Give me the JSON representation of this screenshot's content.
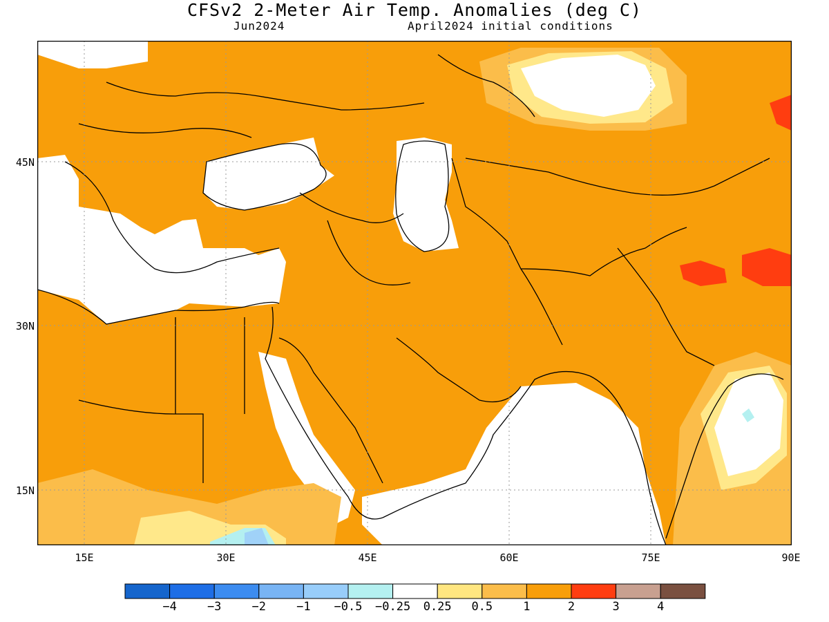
{
  "header": {
    "title": "CFSv2 2-Meter Air Temp. Anomalies (deg C)",
    "valid_month": "Jun2024",
    "init": "April2024 initial conditions"
  },
  "map": {
    "lon_range": [
      10,
      90
    ],
    "lat_range": [
      10,
      55
    ],
    "lat_labels": [
      "45N",
      "30N",
      "15N"
    ],
    "lon_labels": [
      "15E",
      "30E",
      "45E",
      "60E",
      "75E",
      "90E"
    ],
    "grid": "dotted",
    "colors": {
      "ocean_neutral": "#ffffff",
      "warm_0_5_1": "#fbbd4a",
      "warm_1_2": "#f89e0a",
      "warm_2_3": "#ff3d10",
      "warm_0_25_0_5": "#ffe88a",
      "cool_light": "#b4f0f0",
      "cool_mid": "#a0d2f8",
      "coastline": "#000000"
    }
  },
  "colorbar": {
    "labels": [
      "−4",
      "−3",
      "−2",
      "−1",
      "−0.5",
      "−0.25",
      "0.25",
      "0.5",
      "1",
      "2",
      "3",
      "4"
    ],
    "colors": [
      "#1565cc",
      "#1e6ee6",
      "#3c8cf0",
      "#78b4f4",
      "#98cdfa",
      "#b4f0f0",
      "#ffffff",
      "#ffe680",
      "#fbbd4a",
      "#f89e0a",
      "#ff3d10",
      "#c8a090",
      "#7a5040"
    ]
  }
}
